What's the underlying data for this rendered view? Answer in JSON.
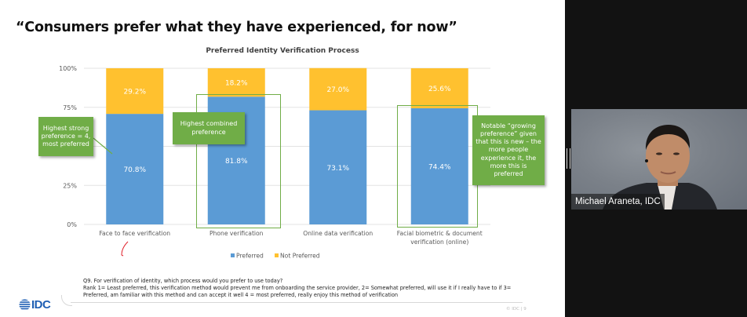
{
  "slide": {
    "title": "“Consumers prefer what they have experienced, for now”",
    "footnote_lines": [
      "Q9. For verification of identity, which process would you prefer to use today?",
      "Rank  1= Least preferred, this verification method would prevent me from onboarding the service provider, 2= Somewhat preferred, will use it if I really have to if 3=",
      "Preferred, am familiar with this method and can accept it well 4 = most preferred, really enjoy this method of verification"
    ],
    "logo_text": "IDC",
    "logo_icon": "idc-globe-icon",
    "page_footer": "© IDC |   9"
  },
  "callouts": [
    {
      "id": "callout-1",
      "text": "Highest strong preference = 4, most preferred"
    },
    {
      "id": "callout-2",
      "text": "Highest combined preference"
    },
    {
      "id": "callout-3",
      "text": "Notable “growing preference” given that this is new – the more  people experience it, the more this is preferred"
    }
  ],
  "chart_data": {
    "type": "bar",
    "stacked": true,
    "title": "Preferred Identity Verification Process",
    "categories": [
      "Face to face verification",
      "Phone verification",
      "Online data verification",
      "Facial biometric & document verification (online)"
    ],
    "category_label_lines": [
      [
        "Face to face verification"
      ],
      [
        "Phone verification"
      ],
      [
        "Online data verification"
      ],
      [
        "Facial biometric & document",
        "verification (online)"
      ]
    ],
    "series": [
      {
        "name": "Preferred",
        "color": "#5b9bd5",
        "values": [
          70.8,
          81.8,
          73.1,
          74.4
        ],
        "labels": [
          "70.8%",
          "81.8%",
          "73.1%",
          "74.4%"
        ]
      },
      {
        "name": "Not Preferred",
        "color": "#ffc12f",
        "values": [
          29.2,
          18.2,
          27.0,
          25.6
        ],
        "labels": [
          "29.2%",
          "18.2%",
          "27.0%",
          "25.6%"
        ]
      }
    ],
    "xlabel": "",
    "ylabel": "",
    "ylim": [
      0,
      100
    ],
    "yticks": [
      0,
      25,
      50,
      75,
      100
    ],
    "ytick_labels": [
      "0%",
      "25%",
      "",
      "75%",
      "100%"
    ],
    "grid": true,
    "legend": {
      "position": "bottom",
      "entries": [
        "Preferred",
        "Not Preferred"
      ]
    }
  },
  "video": {
    "participant_name": "Michael Araneta, IDC"
  },
  "colors": {
    "preferred": "#5b9bd5",
    "not_preferred": "#ffc12f",
    "callout_green": "#70ad47",
    "idc_blue": "#1f5fb4"
  }
}
